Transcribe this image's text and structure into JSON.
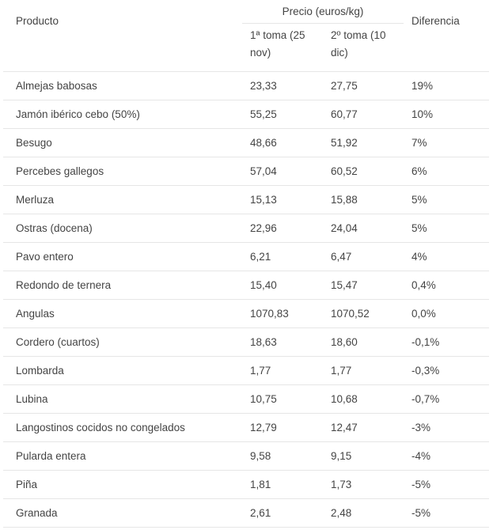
{
  "table": {
    "headers": {
      "producto": "Producto",
      "precio_group": "Precio (euros/kg)",
      "toma1": "1ª toma (25 nov)",
      "toma2": "2º toma (10 dic)",
      "diferencia": "Diferencia"
    },
    "rows": [
      {
        "producto": "Almejas babosas",
        "toma1": "23,33",
        "toma2": "27,75",
        "diferencia": "19%"
      },
      {
        "producto": "Jamón ibérico cebo (50%)",
        "toma1": "55,25",
        "toma2": "60,77",
        "diferencia": "10%"
      },
      {
        "producto": "Besugo",
        "toma1": "48,66",
        "toma2": "51,92",
        "diferencia": "7%"
      },
      {
        "producto": "Percebes gallegos",
        "toma1": "57,04",
        "toma2": "60,52",
        "diferencia": "6%"
      },
      {
        "producto": "Merluza",
        "toma1": "15,13",
        "toma2": "15,88",
        "diferencia": "5%"
      },
      {
        "producto": "Ostras (docena)",
        "toma1": "22,96",
        "toma2": "24,04",
        "diferencia": "5%"
      },
      {
        "producto": "Pavo entero",
        "toma1": "6,21",
        "toma2": "6,47",
        "diferencia": "4%"
      },
      {
        "producto": "Redondo de ternera",
        "toma1": "15,40",
        "toma2": "15,47",
        "diferencia": "0,4%"
      },
      {
        "producto": "Angulas",
        "toma1": "1070,83",
        "toma2": "1070,52",
        "diferencia": "0,0%"
      },
      {
        "producto": "Cordero (cuartos)",
        "toma1": "18,63",
        "toma2": "18,60",
        "diferencia": "-0,1%"
      },
      {
        "producto": "Lombarda",
        "toma1": "1,77",
        "toma2": "1,77",
        "diferencia": "-0,3%"
      },
      {
        "producto": "Lubina",
        "toma1": "10,75",
        "toma2": "10,68",
        "diferencia": "-0,7%"
      },
      {
        "producto": "Langostinos cocidos no congelados",
        "toma1": "12,79",
        "toma2": "12,47",
        "diferencia": "-3%"
      },
      {
        "producto": "Pularda entera",
        "toma1": "9,58",
        "toma2": "9,15",
        "diferencia": "-4%"
      },
      {
        "producto": "Piña",
        "toma1": "1,81",
        "toma2": "1,73",
        "diferencia": "-5%"
      },
      {
        "producto": "Granada",
        "toma1": "2,61",
        "toma2": "2,48",
        "diferencia": "-5%"
      }
    ]
  }
}
